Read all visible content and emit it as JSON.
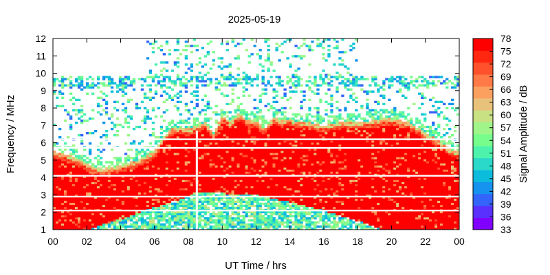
{
  "chart_data": {
    "type": "heatmap",
    "title": "2025-05-19",
    "xlabel": "UT Time / hrs",
    "ylabel": "Frequency / MHz",
    "colorbar_label": "Signal Amplitude / dB",
    "xlim": [
      0,
      24
    ],
    "ylim": [
      1,
      12
    ],
    "x_ticks": [
      "00",
      "02",
      "04",
      "06",
      "08",
      "10",
      "12",
      "14",
      "16",
      "18",
      "20",
      "22",
      "00"
    ],
    "y_ticks": [
      "1",
      "2",
      "3",
      "4",
      "5",
      "6",
      "7",
      "8",
      "9",
      "10",
      "11",
      "12"
    ],
    "colorbar_range": [
      33,
      78
    ],
    "colorbar_ticks": [
      "33",
      "36",
      "39",
      "42",
      "45",
      "48",
      "51",
      "54",
      "57",
      "60",
      "63",
      "66",
      "69",
      "72",
      "75",
      "78"
    ],
    "colormap": [
      "#8000ff",
      "#5a30ff",
      "#3464fa",
      "#1593ee",
      "#0cbcdc",
      "#2ad9c9",
      "#4df3ac",
      "#76fd8c",
      "#a0f58a",
      "#c8e283",
      "#e8c27a",
      "#fca060",
      "#ff7a46",
      "#ff512c",
      "#ff2710",
      "#ff0000"
    ],
    "grid": false,
    "strong_signal_upper_edge": {
      "x": [
        0,
        1,
        2,
        3,
        4,
        5,
        6,
        6.5,
        7,
        7.5,
        8,
        8.5,
        9,
        9.5,
        10,
        10.5,
        11,
        11.5,
        12,
        12.5,
        13,
        13.5,
        14,
        14.5,
        15,
        16,
        17,
        18,
        19,
        19.5,
        20,
        20.5,
        21,
        21.5,
        22,
        22.5,
        23,
        23.5,
        24
      ],
      "y": [
        5.5,
        5.3,
        4.8,
        4.5,
        4.7,
        5.0,
        5.5,
        6.3,
        6.8,
        6.9,
        6.8,
        7.0,
        7.2,
        6.5,
        7.6,
        7.2,
        7.7,
        7.3,
        7.3,
        6.8,
        7.5,
        7.3,
        7.4,
        7.2,
        7.2,
        7.0,
        7.2,
        7.2,
        7.3,
        7.4,
        7.4,
        7.3,
        7.2,
        6.9,
        6.6,
        6.3,
        6.0,
        5.6,
        5.5
      ]
    },
    "low_frequency_cutoff_edge": {
      "x": [
        0,
        2,
        4,
        6,
        8,
        8.5,
        10,
        12,
        14,
        16,
        18,
        19.5,
        20,
        22,
        24
      ],
      "y": [
        1.0,
        1.0,
        1.6,
        2.3,
        2.9,
        3.2,
        3.1,
        3.0,
        2.6,
        2.1,
        1.5,
        1.0,
        1.0,
        1.0,
        1.0
      ]
    },
    "horizontal_gaps_mhz": [
      2.1,
      2.9,
      4.1,
      5.7,
      6.2
    ],
    "vertical_gap_hours": 8.5,
    "scatter_top_extent": {
      "x": [
        0,
        5.5,
        5.5,
        18,
        18,
        24
      ],
      "y": [
        9.8,
        9.8,
        12,
        12,
        9.8,
        9.8
      ]
    }
  }
}
